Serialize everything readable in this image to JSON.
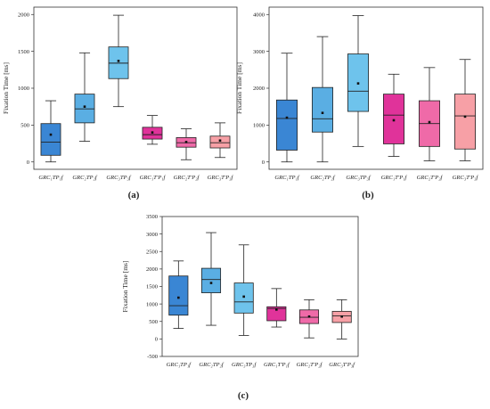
{
  "chart_data": [
    {
      "type": "box",
      "panel_label": "(a)",
      "ylabel": "Fixation Time [ms]",
      "ylim": [
        -100,
        2100
      ],
      "yticks": [
        0,
        500,
        1000,
        1500,
        2000
      ],
      "categories": [
        "GRC₁TP₁f",
        "GRC₂TP₂f",
        "GRC₃TP₃f",
        "GRC₁T'P₁f",
        "GRC₂T'P₂f",
        "GRC₃T'P₃f"
      ],
      "colors": [
        "#3a86d4",
        "#5aaee3",
        "#6ec3ec",
        "#e0339a",
        "#ef6aa8",
        "#f7a0a6"
      ],
      "boxes": [
        {
          "min": 0,
          "q1": 90,
          "median": 270,
          "q3": 520,
          "max": 830,
          "mean": 370
        },
        {
          "min": 280,
          "q1": 530,
          "median": 720,
          "q3": 920,
          "max": 1480,
          "mean": 750
        },
        {
          "min": 750,
          "q1": 1130,
          "median": 1340,
          "q3": 1560,
          "max": 1990,
          "mean": 1370
        },
        {
          "min": 240,
          "q1": 310,
          "median": 370,
          "q3": 470,
          "max": 630,
          "mean": 400
        },
        {
          "min": 30,
          "q1": 200,
          "median": 260,
          "q3": 330,
          "max": 450,
          "mean": 270
        },
        {
          "min": 60,
          "q1": 190,
          "median": 260,
          "q3": 350,
          "max": 530,
          "mean": 290
        }
      ]
    },
    {
      "type": "box",
      "panel_label": "(b)",
      "ylabel": "Fixation Time [ms]",
      "ylim": [
        -200,
        4200
      ],
      "yticks": [
        0,
        1000,
        2000,
        3000,
        4000
      ],
      "categories": [
        "GRC₁TP₁f",
        "GRC₂TP₂f",
        "GRC₃TP₃f",
        "GRC₁T'P₁f",
        "GRC₂T'P₂f",
        "GRC₃T'P₃f"
      ],
      "colors": [
        "#3a86d4",
        "#5aaee3",
        "#6ec3ec",
        "#e0339a",
        "#ef6aa8",
        "#f7a0a6"
      ],
      "boxes": [
        {
          "min": 0,
          "q1": 320,
          "median": 1180,
          "q3": 1680,
          "max": 2950,
          "mean": 1200
        },
        {
          "min": 0,
          "q1": 810,
          "median": 1170,
          "q3": 2020,
          "max": 3400,
          "mean": 1330
        },
        {
          "min": 420,
          "q1": 1370,
          "median": 1920,
          "q3": 2930,
          "max": 3970,
          "mean": 2130
        },
        {
          "min": 150,
          "q1": 490,
          "median": 1270,
          "q3": 1840,
          "max": 2380,
          "mean": 1130
        },
        {
          "min": 30,
          "q1": 420,
          "median": 1040,
          "q3": 1660,
          "max": 2560,
          "mean": 1080
        },
        {
          "min": 30,
          "q1": 350,
          "median": 1250,
          "q3": 1840,
          "max": 2780,
          "mean": 1230
        }
      ]
    },
    {
      "type": "box",
      "panel_label": "(c)",
      "ylabel": "Fixation Time [ms]",
      "ylim": [
        -500,
        3500
      ],
      "yticks": [
        -500,
        0,
        500,
        1000,
        1500,
        2000,
        2500,
        3000,
        3500
      ],
      "categories": [
        "GRC₁TP₁f",
        "GRC₂TP₂f",
        "GRC₃TP₃f",
        "GRC₁T'P₁f",
        "GRC₂T'P₂f",
        "GRC₃T'P₃f"
      ],
      "colors": [
        "#3a86d4",
        "#5aaee3",
        "#6ec3ec",
        "#e0339a",
        "#ef6aa8",
        "#f7a0a6"
      ],
      "boxes": [
        {
          "min": 300,
          "q1": 680,
          "median": 950,
          "q3": 1800,
          "max": 2230,
          "mean": 1180
        },
        {
          "min": 390,
          "q1": 1320,
          "median": 1700,
          "q3": 2020,
          "max": 3040,
          "mean": 1600
        },
        {
          "min": 100,
          "q1": 740,
          "median": 1060,
          "q3": 1600,
          "max": 2690,
          "mean": 1210
        },
        {
          "min": 340,
          "q1": 520,
          "median": 870,
          "q3": 920,
          "max": 1440,
          "mean": 840
        },
        {
          "min": 30,
          "q1": 440,
          "median": 620,
          "q3": 830,
          "max": 1120,
          "mean": 640
        },
        {
          "min": 0,
          "q1": 470,
          "median": 660,
          "q3": 790,
          "max": 1120,
          "mean": 640
        }
      ]
    }
  ]
}
